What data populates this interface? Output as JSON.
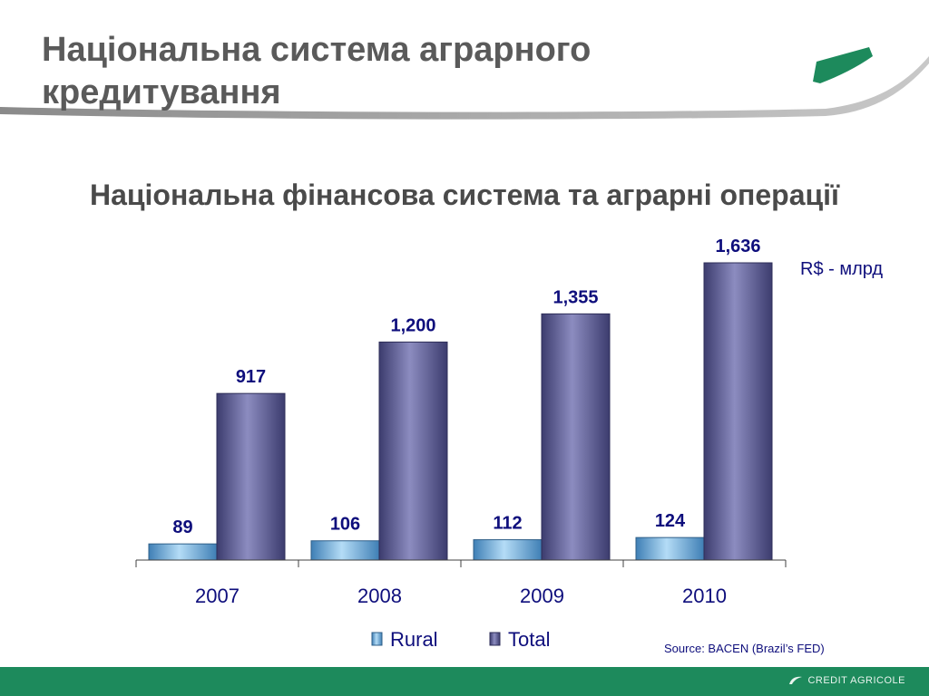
{
  "slide": {
    "title": "Національна система аграрного кредитування",
    "unit": "R$ - млрд",
    "source": "Source: BACEN (Brazil’s FED)",
    "brand": "CREDIT AGRICOLE"
  },
  "colors": {
    "rural": "#8ec3e8",
    "total": "#6a6a9c",
    "label": "#0e0e7c",
    "brand_green": "#1d8a5c"
  },
  "chart_data": {
    "type": "bar",
    "title": "Національна фінансова система та аграрні операції",
    "categories": [
      "2007",
      "2008",
      "2009",
      "2010"
    ],
    "series": [
      {
        "name": "Rural",
        "values": [
          89,
          106,
          112,
          124
        ],
        "labels": [
          "89",
          "106",
          "112",
          "124"
        ]
      },
      {
        "name": "Total",
        "values": [
          917,
          1200,
          1355,
          1636
        ],
        "labels": [
          "917",
          "1,200",
          "1,355",
          "1,636"
        ]
      }
    ],
    "ylim": [
      0,
      1636
    ],
    "grid": false,
    "legend_position": "bottom"
  }
}
